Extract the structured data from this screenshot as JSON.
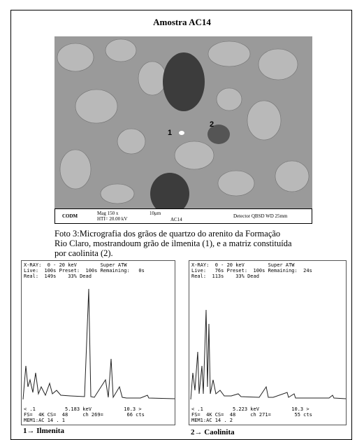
{
  "title": "Amostra AC14",
  "micrograph": {
    "marker_1": "1",
    "marker_2": "2",
    "info_bar": {
      "logo": "CODM",
      "mag": "Mag 150 x",
      "voltage": "HTI= 20.00 kV",
      "scale": "10μm",
      "sample": "AC14",
      "detector": "Detector QBSD WD 25mm"
    }
  },
  "caption": [
    "Foto 3:Micrografia dos grãos de quartzo do arenito da Formação",
    "Rio Claro, mostrandoum grão de ilmenita (1), e a matriz constituída",
    "por caolinita (2)."
  ],
  "spectra": [
    {
      "header": [
        "X-RAY:  0 - 20 keV        Super ATW",
        "Live:  100s Preset:  100s Remaining:   0s",
        "Real:  149s    33% Dead"
      ],
      "footer": [
        "< .1          5.183 keV           10.3 >",
        "FS=  4K CS=  48     ch 269=        66 cts",
        "MEM1:AC 14 . 1"
      ],
      "label": "1→ Ilmenita"
    },
    {
      "header": [
        "X-RAY:  0 - 20 keV        Super ATW",
        "Live:   76s Preset:  100s Remaining:  24s",
        "Real:  113s    33% Dead"
      ],
      "footer": [
        "< .1          5.223 keV           10.3 >",
        "FS=  4K CS=  48     ch 271=        55 cts",
        "MEM1:AC 14 . 2"
      ],
      "label": "2→ Caolinita"
    }
  ]
}
